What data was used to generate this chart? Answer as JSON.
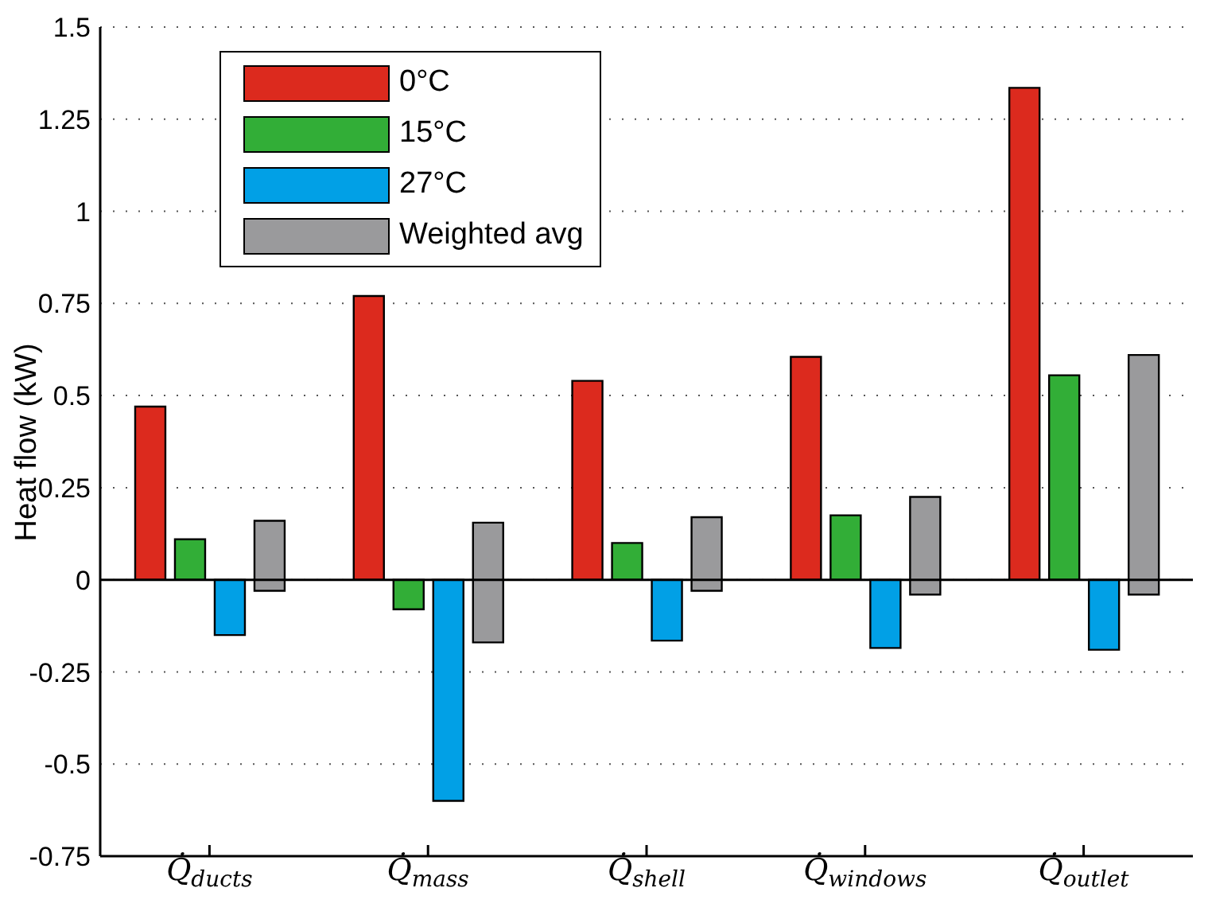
{
  "chart_data": {
    "type": "bar",
    "ylabel": "Heat flow (kW)",
    "categories": [
      "Q̇$_{ducts}$",
      "Q̇$_{mass}$",
      "Q̇$_{shell}$",
      "Q̇$_{windows}$",
      "Q̇$_{outlet}$"
    ],
    "series": [
      {
        "name": "0°C",
        "color": "#dc2a1e",
        "values": [
          0.47,
          0.77,
          0.54,
          0.605,
          1.335
        ]
      },
      {
        "name": "15°C",
        "color": "#32ae37",
        "values": [
          0.11,
          -0.08,
          0.1,
          0.175,
          0.555
        ]
      },
      {
        "name": "27°C",
        "color": "#01a0e6",
        "values": [
          -0.15,
          -0.6,
          -0.165,
          -0.185,
          -0.19
        ]
      },
      {
        "name": "Weighted avg",
        "color": "#9a9a9c",
        "base": [
          -0.03,
          -0.17,
          -0.03,
          -0.04,
          -0.04
        ],
        "values": [
          0.19,
          0.325,
          0.2,
          0.265,
          0.65
        ]
      }
    ],
    "ylim": [
      -0.75,
      1.5
    ],
    "yticks": [
      -0.75,
      -0.5,
      -0.25,
      0,
      0.25,
      0.5,
      0.75,
      1,
      1.25,
      1.5
    ],
    "grid": "y",
    "legend": "top left",
    "ref_lines": [
      {
        "axis": "y",
        "value": 0,
        "color": "#000000"
      }
    ]
  }
}
